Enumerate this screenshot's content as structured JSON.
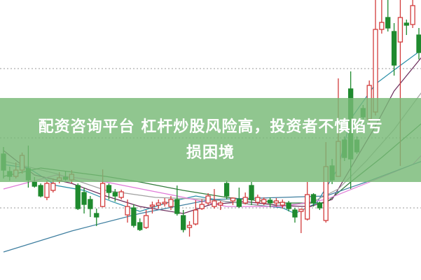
{
  "headline": {
    "line1": "配资咨询平台 杠杆炒股风险高，投资者不慎陷亏",
    "line2": "损困境"
  },
  "colors": {
    "up": "#d23c3c",
    "down": "#1f8a2e",
    "banner": "#78b976",
    "grid": "#999999"
  },
  "chart_data": {
    "type": "candlestick",
    "title": "",
    "grid": "dotted horizontal",
    "candles": [
      [
        180,
        157,
        190,
        145
      ],
      [
        155,
        148,
        162,
        142
      ],
      [
        148,
        157,
        168,
        145
      ],
      [
        157,
        178,
        182,
        152
      ],
      [
        159,
        143,
        192,
        132
      ],
      [
        140,
        134,
        147,
        132
      ],
      [
        135,
        120,
        138,
        118
      ],
      [
        118,
        138,
        142,
        114
      ],
      [
        128,
        138,
        145,
        125
      ],
      [
        142,
        146,
        154,
        138
      ],
      [
        147,
        144,
        155,
        142
      ],
      [
        143,
        151,
        157,
        138
      ],
      [
        135,
        102,
        138,
        100
      ],
      [
        125,
        108,
        132,
        95
      ],
      [
        115,
        102,
        120,
        90
      ],
      [
        95,
        90,
        102,
        77
      ],
      [
        105,
        138,
        158,
        104
      ],
      [
        135,
        125,
        138,
        115
      ],
      [
        125,
        120,
        130,
        112
      ],
      [
        118,
        126,
        129,
        115
      ],
      [
        93,
        105,
        115,
        82
      ],
      [
        103,
        78,
        108,
        75
      ],
      [
        82,
        72,
        88,
        70
      ],
      [
        75,
        92,
        100,
        73
      ],
      [
        105,
        107,
        112,
        95
      ],
      [
        107,
        110,
        115,
        102
      ],
      [
        110,
        111,
        117,
        105
      ],
      [
        105,
        115,
        120,
        100
      ],
      [
        115,
        95,
        135,
        92
      ],
      [
        92,
        72,
        100,
        68
      ],
      [
        75,
        78,
        84,
        62
      ],
      [
        80,
        100,
        114,
        78
      ],
      [
        102,
        108,
        115,
        100
      ],
      [
        110,
        120,
        124,
        107
      ],
      [
        105,
        113,
        130,
        102
      ],
      [
        107,
        110,
        113,
        100
      ],
      [
        138,
        120,
        142,
        115
      ],
      [
        113,
        117,
        118,
        107
      ],
      [
        115,
        105,
        132,
        103
      ],
      [
        110,
        118,
        125,
        108
      ],
      [
        135,
        115,
        140,
        107
      ],
      [
        111,
        118,
        122,
        107
      ],
      [
        110,
        115,
        118,
        107
      ],
      [
        114,
        110,
        118,
        104
      ],
      [
        110,
        113,
        117,
        105
      ],
      [
        107,
        111,
        115,
        102
      ],
      [
        110,
        102,
        113,
        98
      ],
      [
        100,
        90,
        103,
        82
      ],
      [
        98,
        101,
        102,
        67
      ],
      [
        87,
        122,
        140,
        85
      ],
      [
        122,
        110,
        124,
        105
      ],
      [
        110,
        103,
        112,
        100
      ],
      [
        85,
        162,
        197,
        82
      ],
      [
        163,
        143,
        173,
        137
      ],
      [
        148,
        198,
        288,
        148
      ],
      [
        200,
        175,
        205,
        170
      ],
      [
        273,
        173,
        298,
        130
      ],
      [
        200,
        183,
        205,
        180
      ],
      [
        245,
        233,
        250,
        220
      ],
      [
        230,
        278,
        285,
        225
      ],
      [
        240,
        358,
        400,
        235
      ],
      [
        358,
        368,
        400,
        352
      ],
      [
        375,
        360,
        400,
        355
      ],
      [
        355,
        307,
        367,
        292
      ],
      [
        340,
        375,
        400,
        163
      ],
      [
        367,
        364,
        372,
        350
      ],
      [
        365,
        392,
        400,
        360
      ],
      [
        350,
        325,
        360,
        315
      ]
    ],
    "candle_format": [
      "open",
      "close",
      "high",
      "low"
    ],
    "gridlines": [
      302,
      203,
      103
    ],
    "moving_averages": [
      {
        "color": "#2a8fa8",
        "points": [
          [
            0,
            165
          ],
          [
            4,
            160
          ],
          [
            8.5,
            135
          ],
          [
            13,
            128
          ],
          [
            17.5,
            112
          ],
          [
            22,
            98
          ],
          [
            27,
            112
          ],
          [
            31,
            120
          ],
          [
            36,
            112
          ],
          [
            40,
            108
          ],
          [
            45,
            103
          ],
          [
            47,
            95
          ],
          [
            50.5,
            110
          ],
          [
            54,
            160
          ],
          [
            56,
            230
          ],
          [
            60,
            280
          ],
          [
            63,
            300
          ],
          [
            67.6,
            330
          ]
        ]
      },
      {
        "color": "#6a2a5a",
        "points": [
          [
            0,
            185
          ],
          [
            5,
            150
          ],
          [
            11,
            138
          ],
          [
            16.5,
            120
          ],
          [
            22,
            105
          ],
          [
            29,
            95
          ],
          [
            33.5,
            108
          ],
          [
            39,
            112
          ],
          [
            45,
            106
          ],
          [
            49.5,
            105
          ],
          [
            53,
            115
          ],
          [
            56,
            160
          ],
          [
            60,
            220
          ],
          [
            63,
            270
          ],
          [
            67.6,
            320
          ]
        ]
      },
      {
        "color": "#a0a0a0",
        "points": [
          [
            0,
            170
          ],
          [
            8.5,
            152
          ],
          [
            16.5,
            128
          ],
          [
            24.5,
            118
          ],
          [
            33.5,
            115
          ],
          [
            42.5,
            105
          ],
          [
            49.5,
            110
          ],
          [
            54,
            130
          ],
          [
            58.5,
            170
          ],
          [
            63,
            215
          ],
          [
            67.6,
            270
          ]
        ]
      },
      {
        "color": "#2f7a3a",
        "points": [
          [
            0,
            148
          ],
          [
            6,
            160
          ],
          [
            16.5,
            148
          ],
          [
            22,
            140
          ],
          [
            29,
            128
          ],
          [
            36,
            118
          ],
          [
            45,
            110
          ],
          [
            52,
            110
          ],
          [
            56,
            140
          ],
          [
            61,
            175
          ],
          [
            67.6,
            225
          ]
        ]
      },
      {
        "color": "#e07ad8",
        "points": [
          [
            0,
            130
          ],
          [
            8.5,
            150
          ],
          [
            16.5,
            140
          ],
          [
            28,
            120
          ],
          [
            36,
            105
          ],
          [
            45,
            105
          ],
          [
            52,
            115
          ],
          [
            58.5,
            138
          ],
          [
            66,
            165
          ],
          [
            67.6,
            180
          ]
        ]
      },
      {
        "color": "#3f7fa0",
        "points": [
          [
            0,
            40
          ],
          [
            11,
            70
          ],
          [
            22,
            95
          ],
          [
            33.5,
            115
          ],
          [
            45,
            118
          ],
          [
            52,
            120
          ],
          [
            58.5,
            140
          ],
          [
            66,
            165
          ],
          [
            67.6,
            170
          ]
        ]
      }
    ]
  }
}
